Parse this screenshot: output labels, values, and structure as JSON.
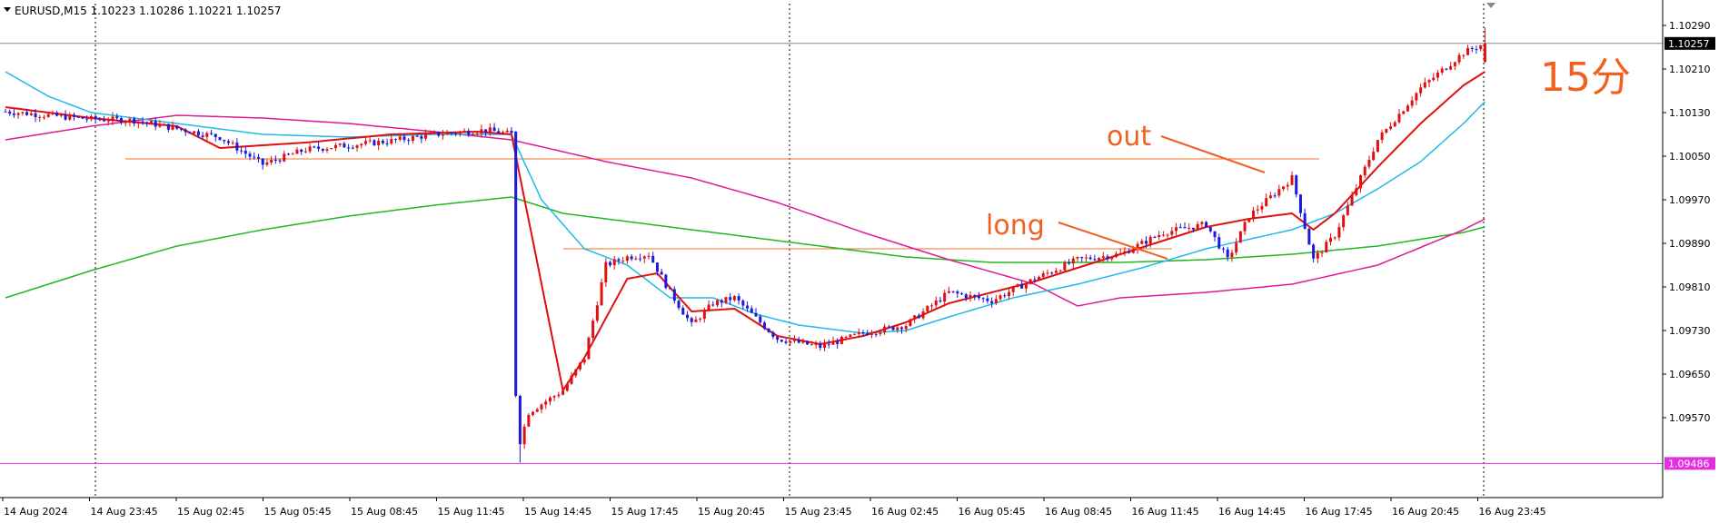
{
  "header": {
    "symbol_line": "EURUSD,M15  1.10223 1.10286 1.10221 1.10257"
  },
  "annotations": {
    "period": "15分",
    "out_label": "out",
    "long_label": "long"
  },
  "colors": {
    "bull": "#e01010",
    "bear": "#1a1ad8",
    "ma_fast": "#e01010",
    "ma_mid": "#22b8e8",
    "ma_slow": "#e0189a",
    "ma_long": "#20b820",
    "hline": "#f07020",
    "annot": "#f06020",
    "grid": "#000000",
    "price_tag_bg": "#000000",
    "low_tag_bg": "#e030e0"
  },
  "chart_data": {
    "type": "candlestick",
    "symbol": "EURUSD",
    "timeframe": "M15",
    "ohlc_header": {
      "open": 1.10223,
      "high": 1.10286,
      "low": 1.10221,
      "close": 1.10257
    },
    "y_ticks": [
      "1.10290",
      "1.10210",
      "1.10130",
      "1.10050",
      "1.09970",
      "1.09890",
      "1.09810",
      "1.09730",
      "1.09650",
      "1.09570"
    ],
    "ylim": [
      1.09475,
      1.10325
    ],
    "x_ticks": [
      "14 Aug 2024",
      "14 Aug 23:45",
      "15 Aug 02:45",
      "15 Aug 05:45",
      "15 Aug 08:45",
      "15 Aug 11:45",
      "15 Aug 14:45",
      "15 Aug 17:45",
      "15 Aug 20:45",
      "15 Aug 23:45",
      "16 Aug 02:45",
      "16 Aug 05:45",
      "16 Aug 08:45",
      "16 Aug 11:45",
      "16 Aug 14:45",
      "16 Aug 17:45",
      "16 Aug 20:45",
      "16 Aug 23:45"
    ],
    "current_price": "1.10257",
    "low_price": "1.09486",
    "horizontal_lines": [
      1.10045,
      1.0988
    ],
    "close_path": [
      [
        0,
        1.10132
      ],
      [
        20,
        1.10118
      ],
      [
        30,
        1.10116
      ],
      [
        50,
        1.10085
      ],
      [
        60,
        1.10035
      ],
      [
        70,
        1.10062
      ],
      [
        90,
        1.10078
      ],
      [
        100,
        1.1009
      ],
      [
        112,
        1.10098
      ],
      [
        118,
        1.1009
      ],
      [
        119,
        1.095
      ],
      [
        122,
        1.0958
      ],
      [
        130,
        1.0962
      ],
      [
        135,
        1.0968
      ],
      [
        140,
        1.0985
      ],
      [
        145,
        1.09865
      ],
      [
        150,
        1.0987
      ],
      [
        155,
        1.098
      ],
      [
        160,
        1.0974
      ],
      [
        165,
        1.0978
      ],
      [
        170,
        1.0979
      ],
      [
        180,
        1.09715
      ],
      [
        190,
        1.097
      ],
      [
        200,
        1.09725
      ],
      [
        210,
        1.0974
      ],
      [
        220,
        1.098
      ],
      [
        230,
        1.09785
      ],
      [
        240,
        1.09825
      ],
      [
        250,
        1.0986
      ],
      [
        260,
        1.0987
      ],
      [
        270,
        1.0991
      ],
      [
        280,
        1.09925
      ],
      [
        285,
        1.0986
      ],
      [
        290,
        1.0994
      ],
      [
        300,
        1.1001
      ],
      [
        305,
        1.0986
      ],
      [
        310,
        1.09905
      ],
      [
        320,
        1.1008
      ],
      [
        330,
        1.10175
      ],
      [
        340,
        1.1024
      ],
      [
        345,
        1.10257
      ]
    ],
    "ma_fast_path": [
      [
        0,
        1.1014
      ],
      [
        20,
        1.1012
      ],
      [
        40,
        1.10105
      ],
      [
        50,
        1.10065
      ],
      [
        70,
        1.10075
      ],
      [
        90,
        1.1009
      ],
      [
        110,
        1.10095
      ],
      [
        118,
        1.1009
      ],
      [
        130,
        1.0962
      ],
      [
        135,
        1.0968
      ],
      [
        145,
        1.09825
      ],
      [
        152,
        1.09835
      ],
      [
        160,
        1.09765
      ],
      [
        170,
        1.0977
      ],
      [
        180,
        1.0972
      ],
      [
        190,
        1.09705
      ],
      [
        200,
        1.0972
      ],
      [
        210,
        1.09745
      ],
      [
        220,
        1.0978
      ],
      [
        230,
        1.098
      ],
      [
        240,
        1.0982
      ],
      [
        250,
        1.09845
      ],
      [
        260,
        1.0987
      ],
      [
        270,
        1.09895
      ],
      [
        280,
        1.0992
      ],
      [
        290,
        1.09935
      ],
      [
        300,
        1.09945
      ],
      [
        305,
        1.09915
      ],
      [
        310,
        1.09945
      ],
      [
        320,
        1.1003
      ],
      [
        330,
        1.1011
      ],
      [
        340,
        1.1018
      ],
      [
        345,
        1.10205
      ]
    ],
    "ma_mid_path": [
      [
        0,
        1.10205
      ],
      [
        10,
        1.1016
      ],
      [
        20,
        1.1013
      ],
      [
        40,
        1.1011
      ],
      [
        60,
        1.1009
      ],
      [
        80,
        1.10085
      ],
      [
        100,
        1.1009
      ],
      [
        118,
        1.1009
      ],
      [
        125,
        1.0997
      ],
      [
        135,
        1.0988
      ],
      [
        145,
        1.0985
      ],
      [
        155,
        1.0979
      ],
      [
        165,
        1.0979
      ],
      [
        175,
        1.0976
      ],
      [
        185,
        1.0974
      ],
      [
        200,
        1.09725
      ],
      [
        210,
        1.0973
      ],
      [
        220,
        1.09755
      ],
      [
        235,
        1.0979
      ],
      [
        250,
        1.09815
      ],
      [
        265,
        1.09845
      ],
      [
        280,
        1.0988
      ],
      [
        300,
        1.09915
      ],
      [
        310,
        1.09945
      ],
      [
        320,
        1.0999
      ],
      [
        330,
        1.1004
      ],
      [
        340,
        1.1011
      ],
      [
        345,
        1.1015
      ]
    ],
    "ma_slow_path": [
      [
        0,
        1.1008
      ],
      [
        20,
        1.10105
      ],
      [
        40,
        1.10125
      ],
      [
        60,
        1.1012
      ],
      [
        80,
        1.1011
      ],
      [
        100,
        1.10095
      ],
      [
        118,
        1.1008
      ],
      [
        140,
        1.1004
      ],
      [
        160,
        1.1001
      ],
      [
        180,
        1.09965
      ],
      [
        200,
        1.0991
      ],
      [
        220,
        1.0986
      ],
      [
        240,
        1.09815
      ],
      [
        250,
        1.09775
      ],
      [
        260,
        1.0979
      ],
      [
        280,
        1.098
      ],
      [
        300,
        1.09815
      ],
      [
        320,
        1.0985
      ],
      [
        340,
        1.09915
      ],
      [
        345,
        1.09935
      ]
    ],
    "ma_long_path": [
      [
        0,
        1.0979
      ],
      [
        20,
        1.0984
      ],
      [
        40,
        1.09885
      ],
      [
        60,
        1.09915
      ],
      [
        80,
        1.0994
      ],
      [
        100,
        1.0996
      ],
      [
        118,
        1.09975
      ],
      [
        130,
        1.09945
      ],
      [
        150,
        1.09925
      ],
      [
        170,
        1.09905
      ],
      [
        190,
        1.09885
      ],
      [
        210,
        1.09865
      ],
      [
        230,
        1.09855
      ],
      [
        250,
        1.09855
      ],
      [
        260,
        1.09855
      ],
      [
        280,
        1.0986
      ],
      [
        300,
        1.0987
      ],
      [
        320,
        1.09885
      ],
      [
        340,
        1.0991
      ],
      [
        345,
        1.0992
      ]
    ]
  }
}
